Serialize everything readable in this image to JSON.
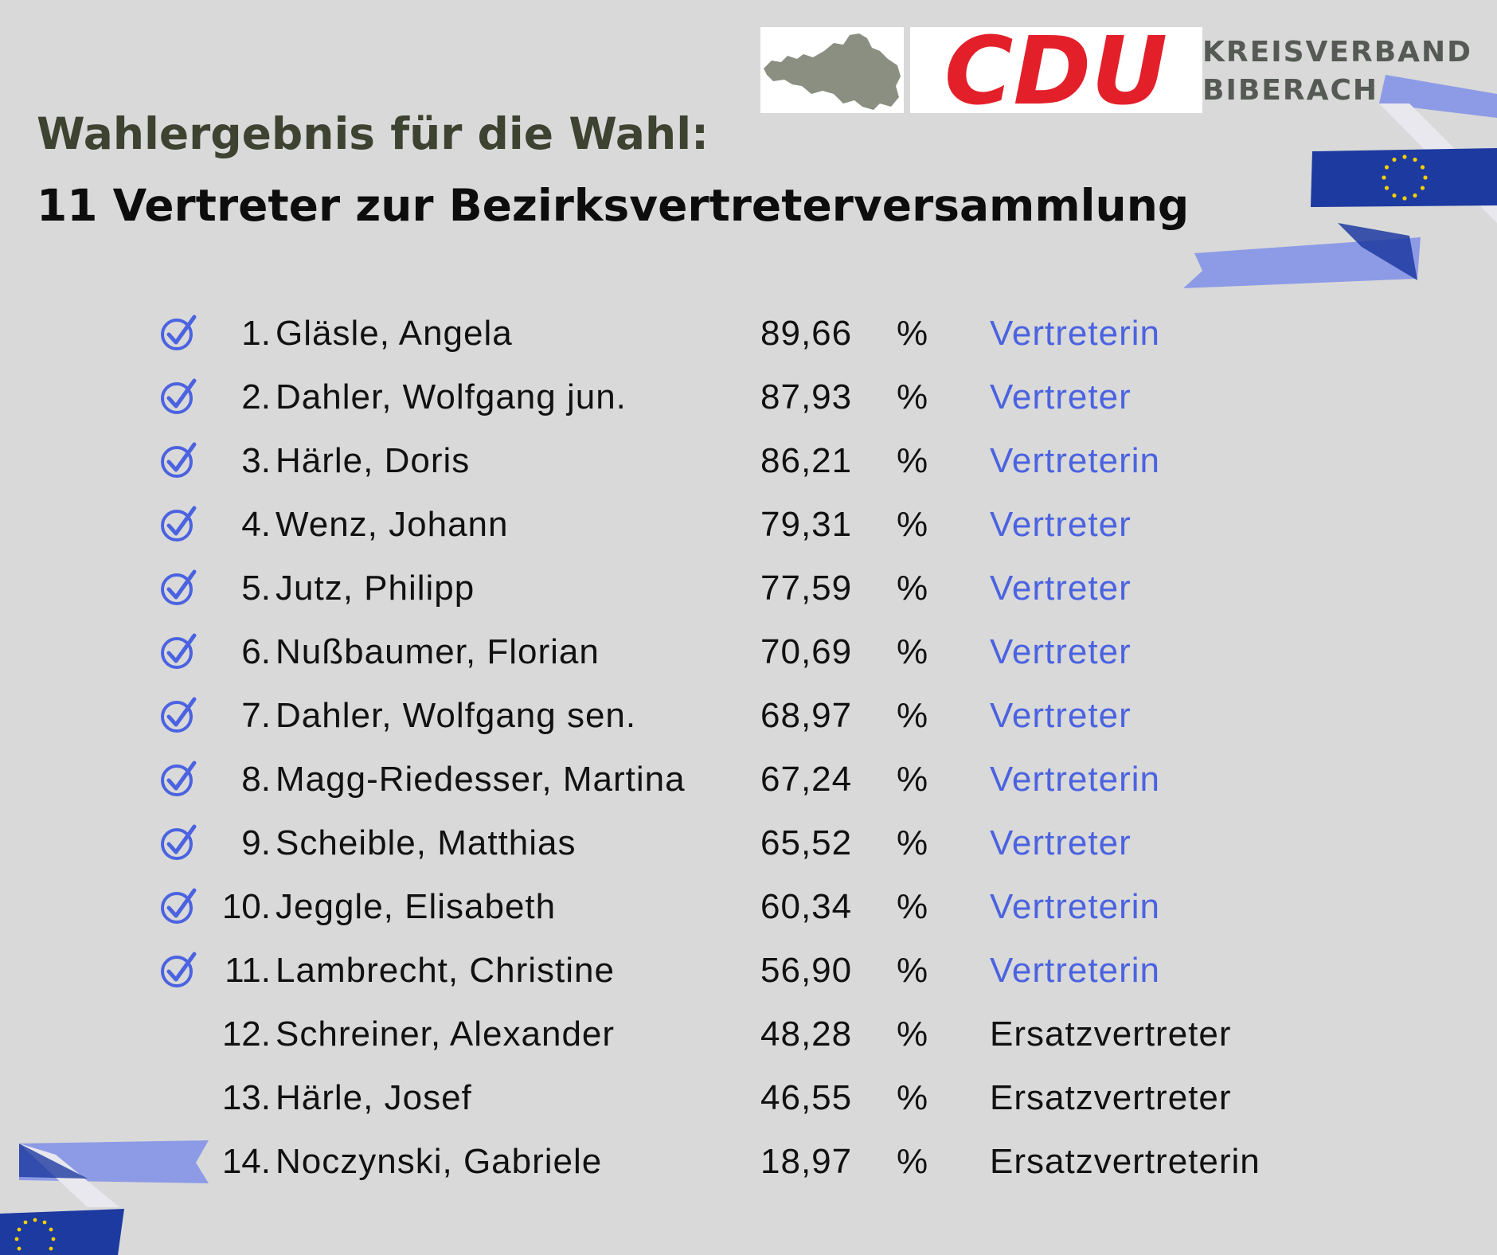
{
  "header": {
    "logo_text": "CDU",
    "org_line1": "KREISVERBAND",
    "org_line2": "BIBERACH",
    "title_line1": "Wahlergebnis für die Wahl:",
    "title_line2": "11 Vertreter zur Bezirksvertreterversammlung"
  },
  "colors": {
    "background": "#d9d9d9",
    "cdu_red": "#e3202a",
    "accent_blue": "#4b63e0",
    "eu_blue": "#1d3aa0",
    "ribbon_light": "#8d9be6",
    "title_olive": "#3e4231"
  },
  "results": [
    {
      "rank": "1.",
      "name": "Gläsle, Angela",
      "percent": "89,66",
      "unit": "%",
      "role": "Vertreterin",
      "elected": true
    },
    {
      "rank": "2.",
      "name": "Dahler, Wolfgang jun.",
      "percent": "87,93",
      "unit": "%",
      "role": "Vertreter",
      "elected": true
    },
    {
      "rank": "3.",
      "name": "Härle, Doris",
      "percent": "86,21",
      "unit": "%",
      "role": "Vertreterin",
      "elected": true
    },
    {
      "rank": "4.",
      "name": "Wenz, Johann",
      "percent": "79,31",
      "unit": "%",
      "role": "Vertreter",
      "elected": true
    },
    {
      "rank": "5.",
      "name": "Jutz, Philipp",
      "percent": "77,59",
      "unit": "%",
      "role": "Vertreter",
      "elected": true
    },
    {
      "rank": "6.",
      "name": "Nußbaumer, Florian",
      "percent": "70,69",
      "unit": "%",
      "role": "Vertreter",
      "elected": true
    },
    {
      "rank": "7.",
      "name": "Dahler, Wolfgang sen.",
      "percent": "68,97",
      "unit": "%",
      "role": "Vertreter",
      "elected": true
    },
    {
      "rank": "8.",
      "name": "Magg-Riedesser, Martina",
      "percent": "67,24",
      "unit": "%",
      "role": "Vertreterin",
      "elected": true
    },
    {
      "rank": "9.",
      "name": "Scheible, Matthias",
      "percent": "65,52",
      "unit": "%",
      "role": "Vertreter",
      "elected": true
    },
    {
      "rank": "10.",
      "name": "Jeggle, Elisabeth",
      "percent": "60,34",
      "unit": "%",
      "role": "Vertreterin",
      "elected": true
    },
    {
      "rank": "11.",
      "name": "Lambrecht, Christine",
      "percent": "56,90",
      "unit": "%",
      "role": "Vertreterin",
      "elected": true
    },
    {
      "rank": "12.",
      "name": "Schreiner, Alexander",
      "percent": "48,28",
      "unit": "%",
      "role": "Ersatzvertreter",
      "elected": false
    },
    {
      "rank": "13.",
      "name": "Härle, Josef",
      "percent": "46,55",
      "unit": "%",
      "role": "Ersatzvertreter",
      "elected": false
    },
    {
      "rank": "14.",
      "name": "Noczynski, Gabriele",
      "percent": "18,97",
      "unit": "%",
      "role": "Ersatzvertreterin",
      "elected": false
    }
  ]
}
